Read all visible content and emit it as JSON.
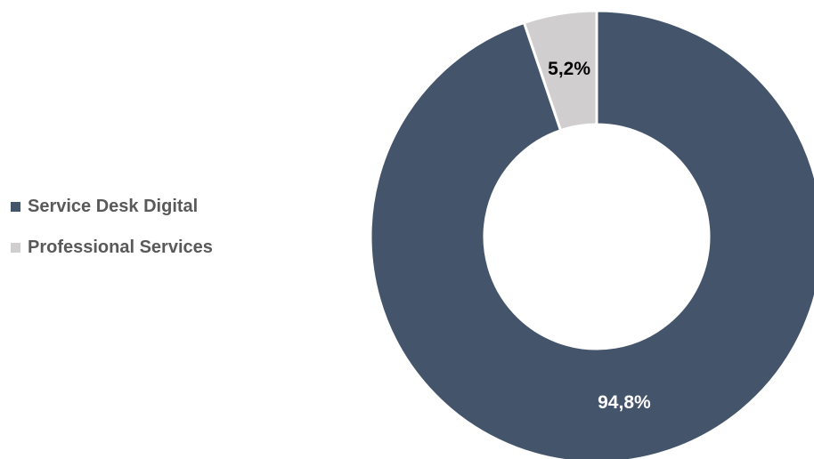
{
  "chart_data": {
    "type": "pie",
    "donut": true,
    "categories": [
      "Service Desk Digital",
      "Professional Services"
    ],
    "values": [
      94.8,
      5.2
    ],
    "data_labels": [
      "94,8%",
      "5,2%"
    ],
    "colors": [
      "#44546a",
      "#d0cece"
    ],
    "label_colors": [
      "#ffffff",
      "#000000"
    ],
    "legend_position": "left"
  }
}
